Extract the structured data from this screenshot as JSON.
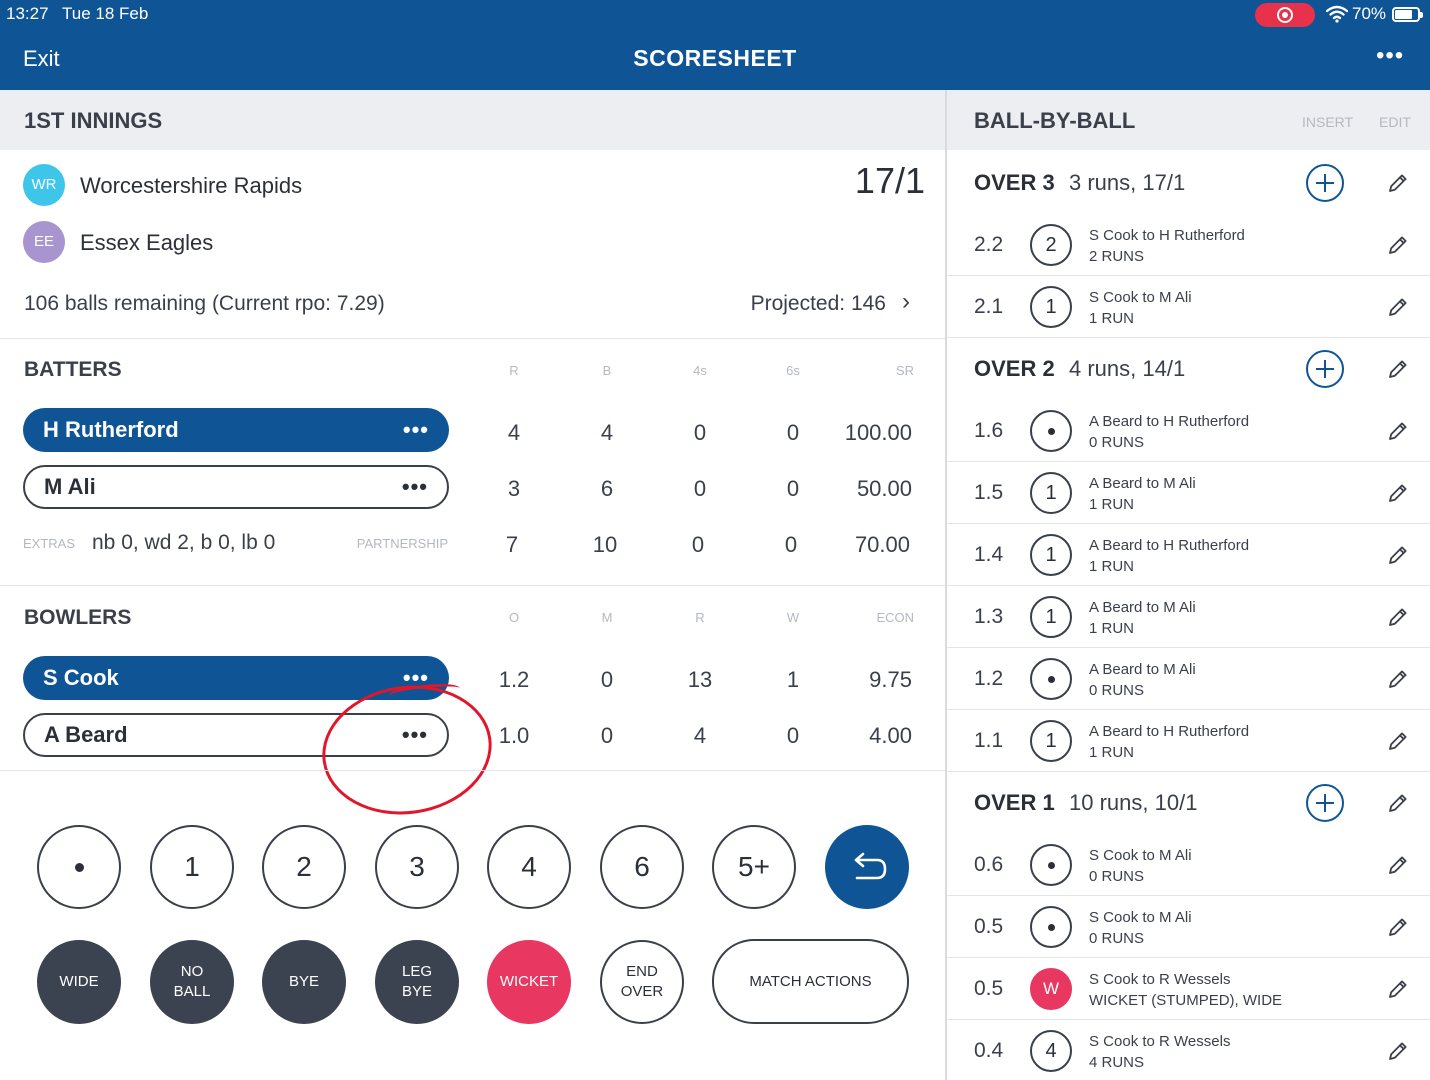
{
  "status_bar": {
    "time": "13:27",
    "date": "Tue 18 Feb",
    "battery": "70%"
  },
  "nav": {
    "exit_label": "Exit",
    "title": "SCORESHEET",
    "more_label": "•••"
  },
  "innings": {
    "header": "1ST INNINGS",
    "teams": [
      {
        "initials": "WR",
        "name": "Worcestershire Rapids",
        "color": "#3ec6ea"
      },
      {
        "initials": "EE",
        "name": "Essex Eagles",
        "color": "#a894cf"
      }
    ],
    "score": "17/1",
    "balls_remaining": "106 balls remaining (Current rpo: 7.29)",
    "projected": "Projected: 146"
  },
  "batters": {
    "title": "BATTERS",
    "columns": [
      "R",
      "B",
      "4s",
      "6s",
      "SR"
    ],
    "rows": [
      {
        "name": "H Rutherford",
        "stats": [
          "4",
          "4",
          "0",
          "0",
          "100.00"
        ],
        "active": true
      },
      {
        "name": "M Ali",
        "stats": [
          "3",
          "6",
          "0",
          "0",
          "50.00"
        ],
        "active": false
      }
    ],
    "extras_label": "EXTRAS",
    "extras_value": "nb 0, wd 2, b 0, lb 0",
    "partnership_label": "PARTNERSHIP",
    "partnership": [
      "7",
      "10",
      "0",
      "0",
      "70.00"
    ]
  },
  "bowlers": {
    "title": "BOWLERS",
    "columns": [
      "O",
      "M",
      "R",
      "W",
      "ECON"
    ],
    "rows": [
      {
        "name": "S Cook",
        "stats": [
          "1.2",
          "0",
          "13",
          "1",
          "9.75"
        ],
        "active": true
      },
      {
        "name": "A Beard",
        "stats": [
          "1.0",
          "0",
          "4",
          "0",
          "4.00"
        ],
        "active": false
      }
    ]
  },
  "keypad": {
    "runs": [
      "•",
      "1",
      "2",
      "3",
      "4",
      "6",
      "5+"
    ],
    "wide": "WIDE",
    "no_ball": [
      "NO",
      "BALL"
    ],
    "bye": "BYE",
    "leg_bye": [
      "LEG",
      "BYE"
    ],
    "wicket": "WICKET",
    "end_over": [
      "END",
      "OVER"
    ],
    "match_actions": "MATCH ACTIONS"
  },
  "ball_by_ball": {
    "header": "BALL-BY-BALL",
    "insert": "INSERT",
    "edit": "EDIT",
    "overs": [
      {
        "label": "OVER 3",
        "summary": "3 runs, 17/1",
        "balls": [
          {
            "num": "2.2",
            "result": "2",
            "kind": "runs",
            "desc": "S Cook to H Rutherford",
            "outcome": "2 RUNS"
          },
          {
            "num": "2.1",
            "result": "1",
            "kind": "runs",
            "desc": "S Cook to M Ali",
            "outcome": "1 RUN"
          }
        ]
      },
      {
        "label": "OVER 2",
        "summary": "4 runs, 14/1",
        "balls": [
          {
            "num": "1.6",
            "result": "",
            "kind": "dot",
            "desc": "A Beard to H Rutherford",
            "outcome": "0 RUNS"
          },
          {
            "num": "1.5",
            "result": "1",
            "kind": "runs",
            "desc": "A Beard to M Ali",
            "outcome": "1 RUN"
          },
          {
            "num": "1.4",
            "result": "1",
            "kind": "runs",
            "desc": "A Beard to H Rutherford",
            "outcome": "1 RUN"
          },
          {
            "num": "1.3",
            "result": "1",
            "kind": "runs",
            "desc": "A Beard to M Ali",
            "outcome": "1 RUN"
          },
          {
            "num": "1.2",
            "result": "",
            "kind": "dot",
            "desc": "A Beard to M Ali",
            "outcome": "0 RUNS"
          },
          {
            "num": "1.1",
            "result": "1",
            "kind": "runs",
            "desc": "A Beard to H Rutherford",
            "outcome": "1 RUN"
          }
        ]
      },
      {
        "label": "OVER 1",
        "summary": "10 runs, 10/1",
        "balls": [
          {
            "num": "0.6",
            "result": "",
            "kind": "dot",
            "desc": "S Cook to M Ali",
            "outcome": "0 RUNS"
          },
          {
            "num": "0.5",
            "result": "",
            "kind": "dot",
            "desc": "S Cook to M Ali",
            "outcome": "0 RUNS"
          },
          {
            "num": "0.5",
            "result": "W",
            "kind": "wicket",
            "desc": "S Cook to R Wessels",
            "outcome": "WICKET (STUMPED), WIDE"
          },
          {
            "num": "0.4",
            "result": "4",
            "kind": "runs",
            "desc": "S Cook to R Wessels",
            "outcome": "4 RUNS"
          }
        ]
      }
    ]
  },
  "colors": {
    "brand_blue": "#0f5596",
    "wicket_pink": "#e83862",
    "dark_button": "#3c4350",
    "annotation_red": "#e2162a"
  }
}
